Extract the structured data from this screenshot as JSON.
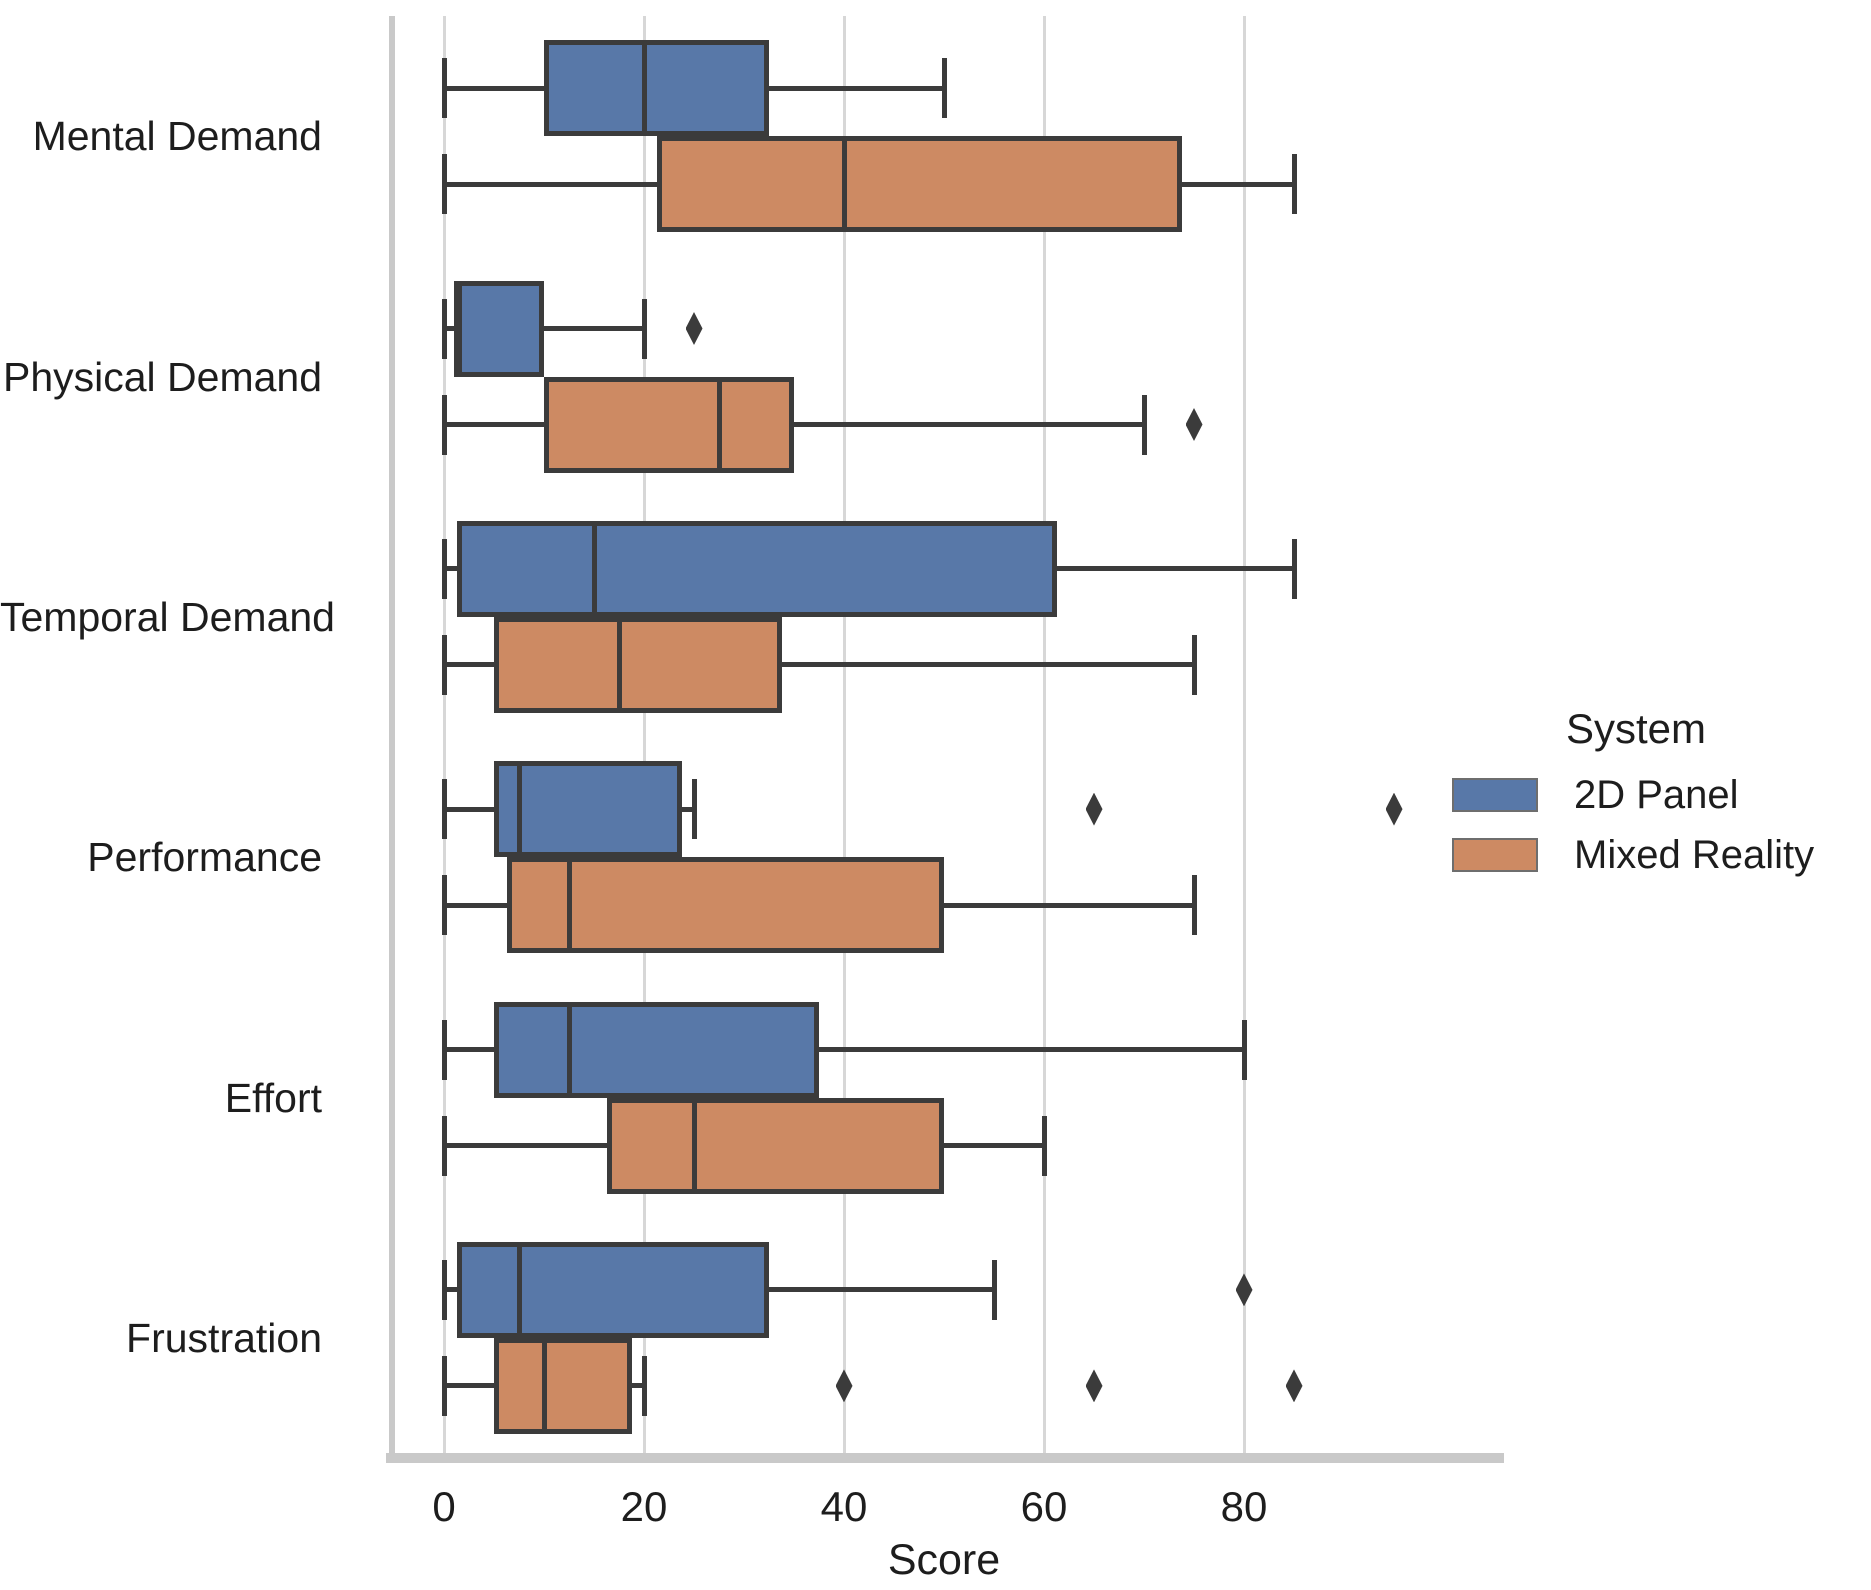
{
  "chart_data": {
    "type": "boxplot-horizontal",
    "xlabel": "Score",
    "xticks": [
      0,
      20,
      40,
      60,
      80
    ],
    "xlim": [
      -5.2,
      105.2
    ],
    "grid": "vertical",
    "categories": [
      "Mental Demand",
      "Physical Demand",
      "Temporal Demand",
      "Performance",
      "Effort",
      "Frustration"
    ],
    "legend": {
      "title": "System",
      "position": "center-right"
    },
    "colors": {
      "box_edge": "#3B3B3B",
      "grid": "#D7D7D7",
      "spine": "#C9C9C9",
      "text": "#1D1D1D"
    },
    "series": [
      {
        "name": "2D Panel",
        "color": "#5878A8",
        "boxes": [
          {
            "category": "Mental Demand",
            "whisker_low": 0,
            "q1": 10,
            "median": 20,
            "q3": 32.5,
            "whisker_high": 50,
            "outliers": []
          },
          {
            "category": "Physical Demand",
            "whisker_low": 0,
            "q1": 1.25,
            "median": 1.25,
            "q3": 10,
            "whisker_high": 20,
            "outliers": [
              25
            ]
          },
          {
            "category": "Temporal Demand",
            "whisker_low": 0,
            "q1": 1.25,
            "median": 15,
            "q3": 61.25,
            "whisker_high": 85,
            "outliers": []
          },
          {
            "category": "Performance",
            "whisker_low": 0,
            "q1": 5,
            "median": 7.5,
            "q3": 23.75,
            "whisker_high": 25,
            "outliers": [
              65,
              95
            ]
          },
          {
            "category": "Effort",
            "whisker_low": 0,
            "q1": 5,
            "median": 12.5,
            "q3": 37.5,
            "whisker_high": 80,
            "outliers": []
          },
          {
            "category": "Frustration",
            "whisker_low": 0,
            "q1": 1.25,
            "median": 7.5,
            "q3": 32.5,
            "whisker_high": 55,
            "outliers": [
              80
            ]
          }
        ]
      },
      {
        "name": "Mixed Reality",
        "color": "#CD8A63",
        "boxes": [
          {
            "category": "Mental Demand",
            "whisker_low": 0,
            "q1": 21.25,
            "median": 40,
            "q3": 73.75,
            "whisker_high": 85,
            "outliers": []
          },
          {
            "category": "Physical Demand",
            "whisker_low": 0,
            "q1": 10,
            "median": 27.5,
            "q3": 35,
            "whisker_high": 70,
            "outliers": [
              75
            ]
          },
          {
            "category": "Temporal Demand",
            "whisker_low": 0,
            "q1": 5,
            "median": 17.5,
            "q3": 33.75,
            "whisker_high": 75,
            "outliers": []
          },
          {
            "category": "Performance",
            "whisker_low": 0,
            "q1": 6.25,
            "median": 12.5,
            "q3": 50,
            "whisker_high": 75,
            "outliers": []
          },
          {
            "category": "Effort",
            "whisker_low": 0,
            "q1": 16.25,
            "median": 25,
            "q3": 50,
            "whisker_high": 60,
            "outliers": []
          },
          {
            "category": "Frustration",
            "whisker_low": 0,
            "q1": 5,
            "median": 10,
            "q3": 18.75,
            "whisker_high": 20,
            "outliers": [
              40,
              65,
              85
            ]
          }
        ]
      }
    ]
  }
}
